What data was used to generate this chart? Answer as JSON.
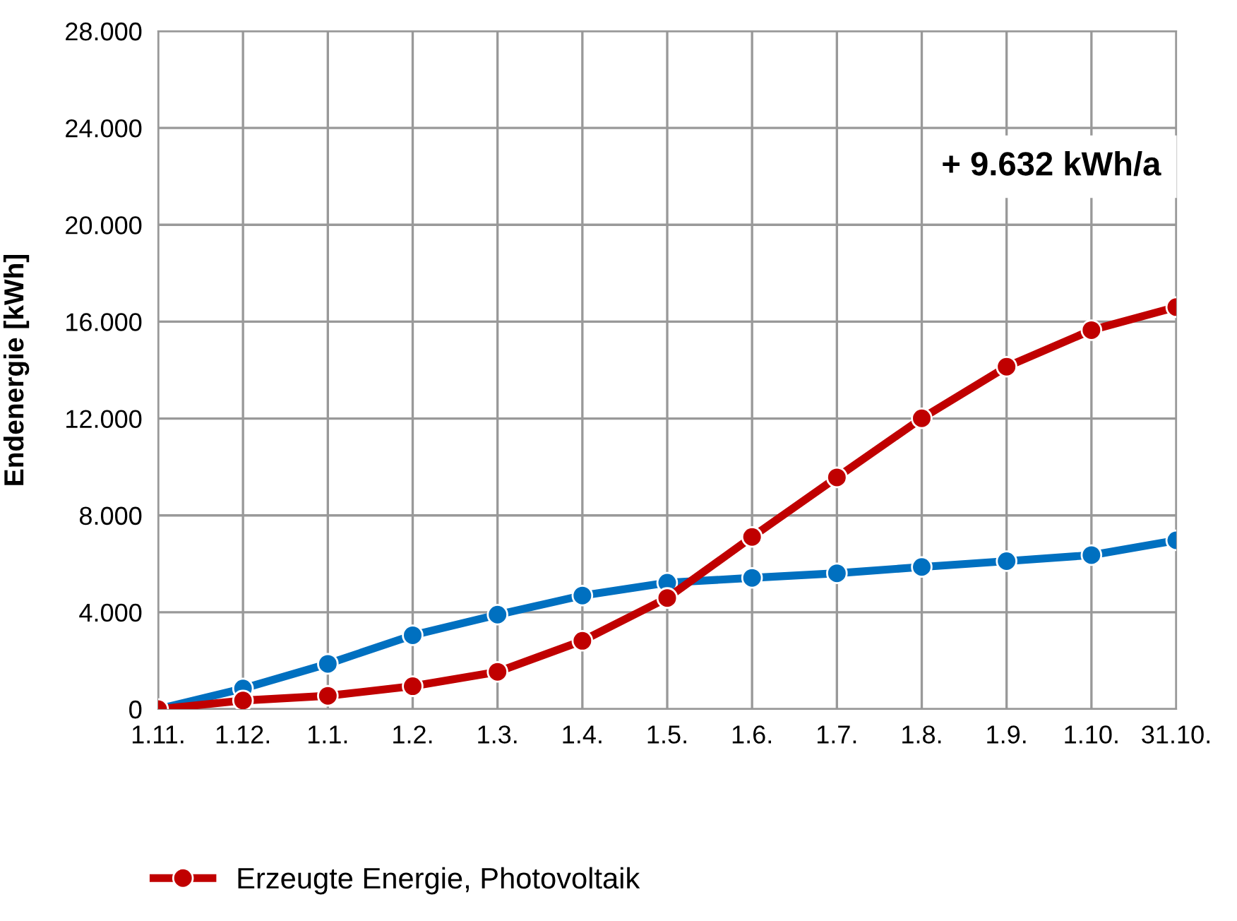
{
  "chart_data": {
    "type": "line",
    "ylabel": "Endenergie [kWh]",
    "categories": [
      "1.11.",
      "1.12.",
      "1.1.",
      "1.2.",
      "1.3.",
      "1.4.",
      "1.5.",
      "1.6.",
      "1.7.",
      "1.8.",
      "1.9.",
      "1.10.",
      "31.10."
    ],
    "series": [
      {
        "color": "#0070c0",
        "values": [
          0,
          850,
          1870,
          3050,
          3900,
          4690,
          5220,
          5420,
          5610,
          5870,
          6110,
          6360,
          6970
        ]
      },
      {
        "name": "Erzeugte Energie, Photovoltaik",
        "color": "#c00000",
        "values": [
          0,
          355,
          550,
          945,
          1540,
          2820,
          4590,
          7110,
          9570,
          12010,
          14140,
          15650,
          16600
        ]
      }
    ],
    "ylim": [
      0,
      28000
    ],
    "yticks": [
      {
        "value": 0,
        "label": "0"
      },
      {
        "value": 4000,
        "label": "4.000"
      },
      {
        "value": 8000,
        "label": "8.000"
      },
      {
        "value": 12000,
        "label": "12.000"
      },
      {
        "value": 16000,
        "label": "16.000"
      },
      {
        "value": 20000,
        "label": "20.000"
      },
      {
        "value": 24000,
        "label": "24.000"
      },
      {
        "value": 28000,
        "label": "28.000"
      }
    ],
    "annotations": [
      "+ 9.632 kWh/a"
    ],
    "grid": true,
    "legend": "bottom left",
    "marker": "circle",
    "line_style": "solid"
  }
}
